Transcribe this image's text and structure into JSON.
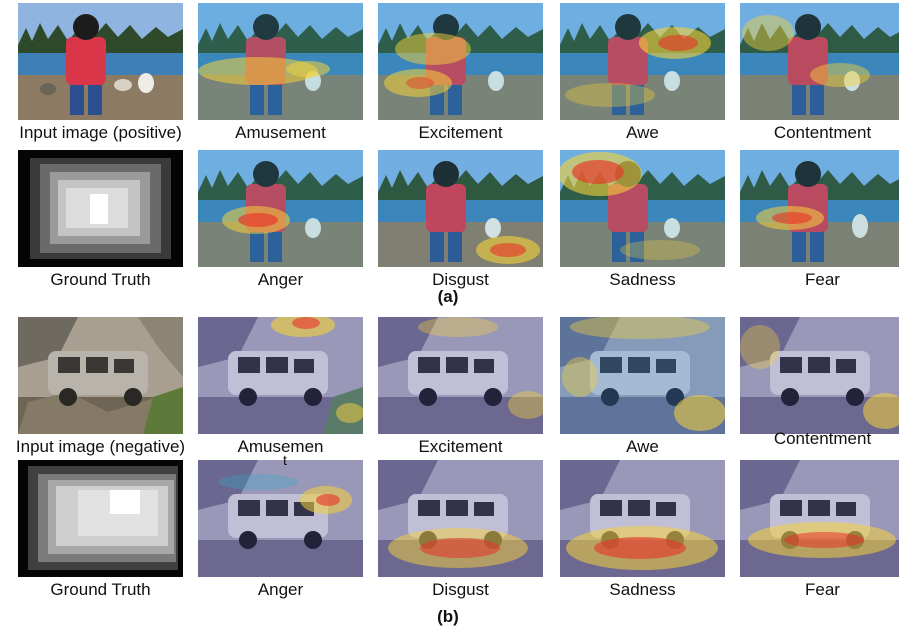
{
  "panel_a": {
    "label": "(a)",
    "row1_captions": [
      "Input image (positive)",
      "Amusement",
      "Excitement",
      "Awe",
      "Contentment"
    ],
    "row2_captions": [
      "Ground Truth",
      "Anger",
      "Disgust",
      "Sadness",
      "Fear"
    ]
  },
  "panel_b": {
    "label": "(b)",
    "row1_captions": [
      "Input image (negative)",
      "Amusemen",
      "Excitement",
      "Awe",
      "Contentment"
    ],
    "row2_captions": [
      "Ground Truth",
      "Anger",
      "Disgust",
      "Sadness",
      "Fear"
    ],
    "stray_mark": "t"
  },
  "colors": {
    "sky": "#6f9fd6",
    "water": "#3f7fb8",
    "ground": "#8d7a63",
    "jacket": "#d9364a",
    "trees": "#2f4a2a",
    "debris_tint": "#8a8fb8",
    "heat_hot": "#e8322a",
    "heat_warm": "#f5d23a",
    "heat_cool": "#2fa8c8"
  }
}
